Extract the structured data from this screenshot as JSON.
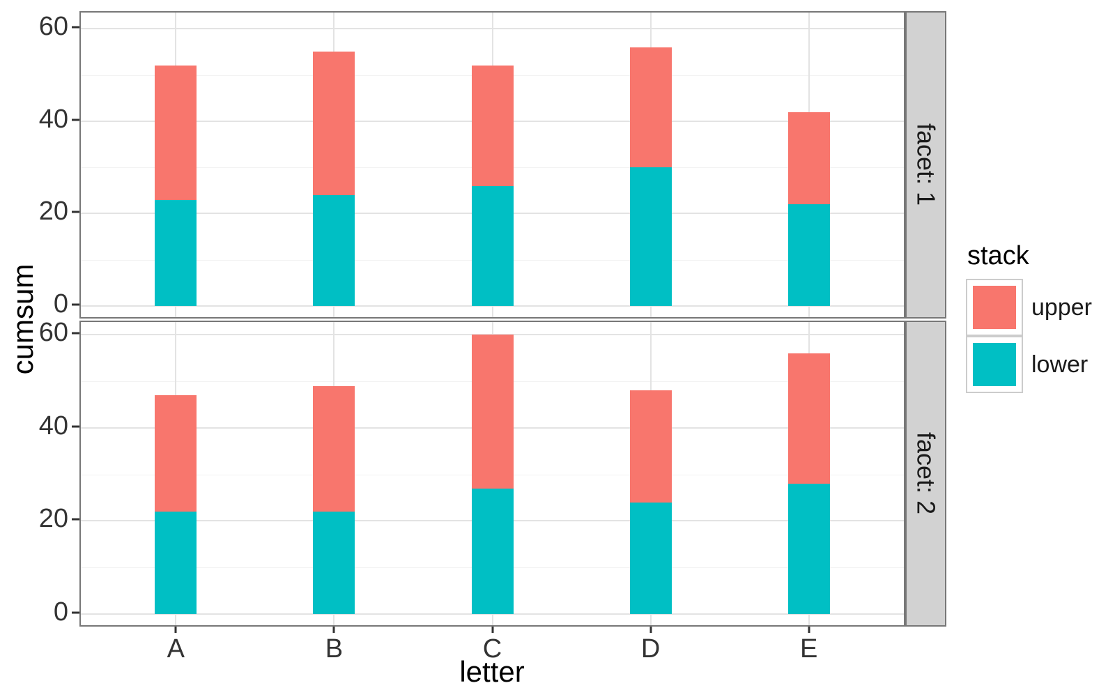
{
  "axes": {
    "x_label": "letter",
    "y_label": "cumsum",
    "x_categories": [
      "A",
      "B",
      "C",
      "D",
      "E"
    ],
    "y_tick_labels": [
      "0",
      "20",
      "40",
      "60"
    ]
  },
  "legend": {
    "title": "stack",
    "entries": [
      {
        "label": "upper",
        "color": "#F8766D"
      },
      {
        "label": "lower",
        "color": "#00BFC4"
      }
    ]
  },
  "facet_strips": [
    {
      "label": "facet: 1"
    },
    {
      "label": "facet: 2"
    }
  ],
  "chart_data": {
    "type": "bar",
    "stacked": true,
    "categories": [
      "A",
      "B",
      "C",
      "D",
      "E"
    ],
    "xlabel": "letter",
    "ylabel": "cumsum",
    "yticks": [
      0,
      20,
      40,
      60
    ],
    "ylim": [
      -3,
      63.5
    ],
    "grid": {
      "horizontal_major": [
        0,
        20,
        40,
        60
      ],
      "horizontal_minor": [
        10,
        30,
        50
      ],
      "vertical_major": "at each category"
    },
    "legend_position": "right",
    "legend_title": "stack",
    "series_colors": {
      "upper": "#F8766D",
      "lower": "#00BFC4"
    },
    "facets": [
      {
        "label": "facet: 1",
        "series": [
          {
            "name": "lower",
            "values": [
              23,
              24,
              26,
              30,
              22
            ]
          },
          {
            "name": "upper",
            "values": [
              29,
              31,
              26,
              26,
              20
            ]
          }
        ],
        "stack_totals": [
          52,
          55,
          52,
          56,
          42
        ]
      },
      {
        "label": "facet: 2",
        "series": [
          {
            "name": "lower",
            "values": [
              22,
              22,
              27,
              24,
              28
            ]
          },
          {
            "name": "upper",
            "values": [
              25,
              27,
              33,
              24,
              28
            ]
          }
        ],
        "stack_totals": [
          47,
          49,
          60,
          48,
          56
        ]
      }
    ]
  }
}
